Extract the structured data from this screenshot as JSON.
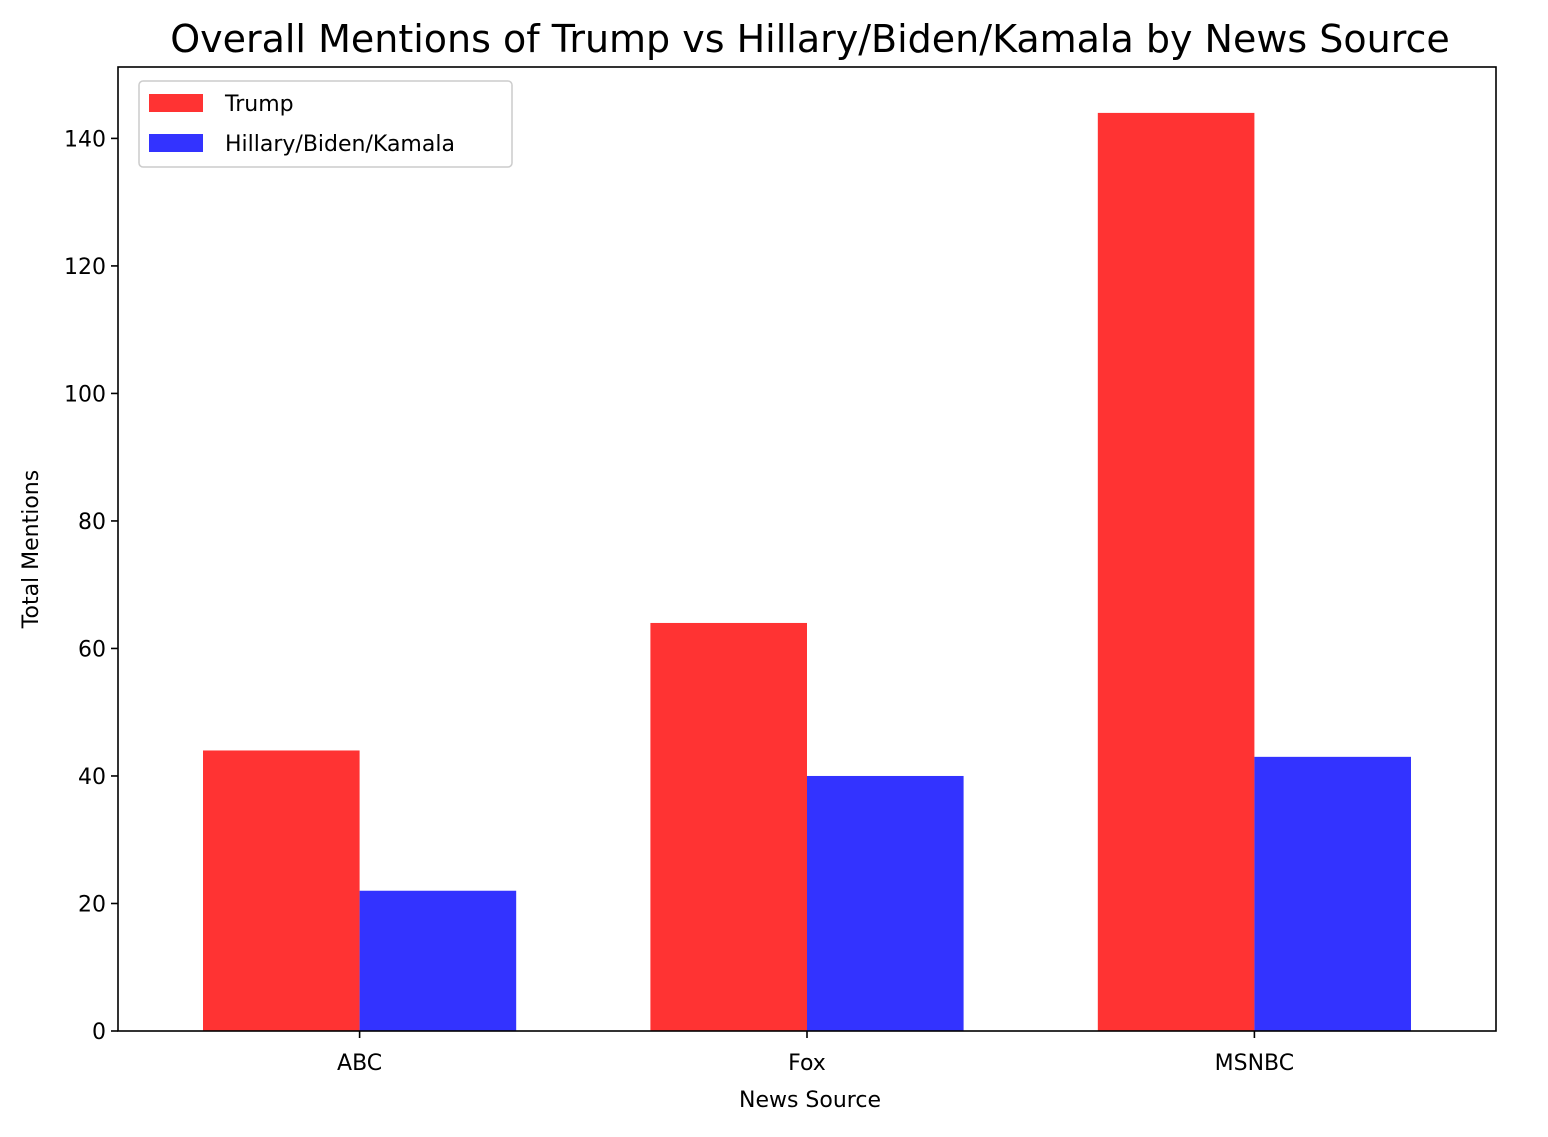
{
  "chart_data": {
    "type": "bar",
    "title": "Overall Mentions of Trump vs Hillary/Biden/Kamala by News Source",
    "xlabel": "News Source",
    "ylabel": "Total Mentions",
    "categories": [
      "ABC",
      "Fox",
      "MSNBC"
    ],
    "series": [
      {
        "name": "Trump",
        "values": [
          44,
          64,
          144
        ],
        "color": "#ff3333"
      },
      {
        "name": "Hillary/Biden/Kamala",
        "values": [
          22,
          40,
          43
        ],
        "color": "#3333ff"
      }
    ],
    "ylim": [
      0,
      151.2
    ],
    "yticks": [
      0,
      20,
      40,
      60,
      80,
      100,
      120,
      140
    ],
    "grid": false,
    "legend_position": "top-left"
  }
}
